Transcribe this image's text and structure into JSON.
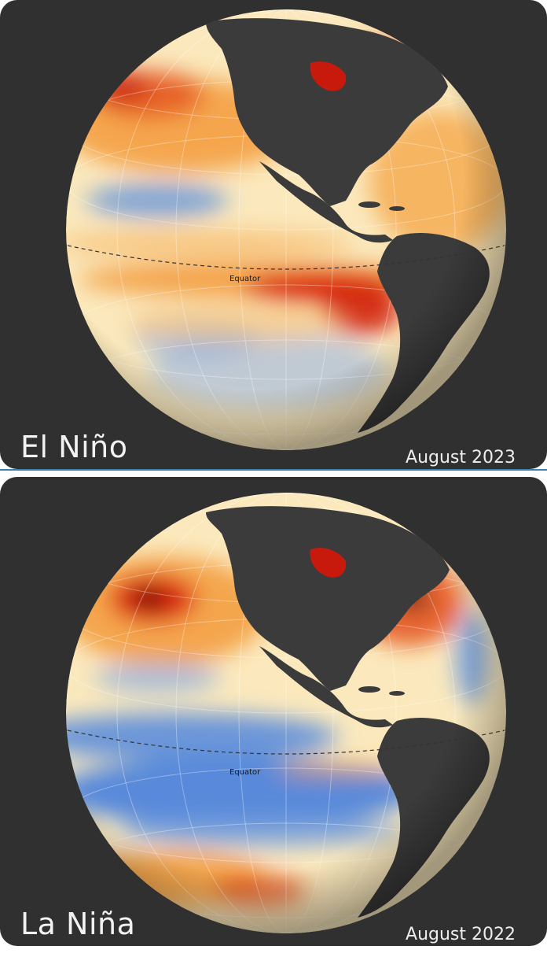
{
  "panels": [
    {
      "title": "El Niño",
      "date": "August 2023",
      "equator_label": "Equator"
    },
    {
      "title": "La Niña",
      "date": "August 2022",
      "equator_label": "Equator"
    }
  ],
  "colors": {
    "background": "#2f302f",
    "land": "#3a3b3a",
    "neutral": "#fbe9bd",
    "warm": "#f39a3b",
    "hot": "#d9200f",
    "extreme": "#1b0a05",
    "cool": "#5b8ddc"
  }
}
